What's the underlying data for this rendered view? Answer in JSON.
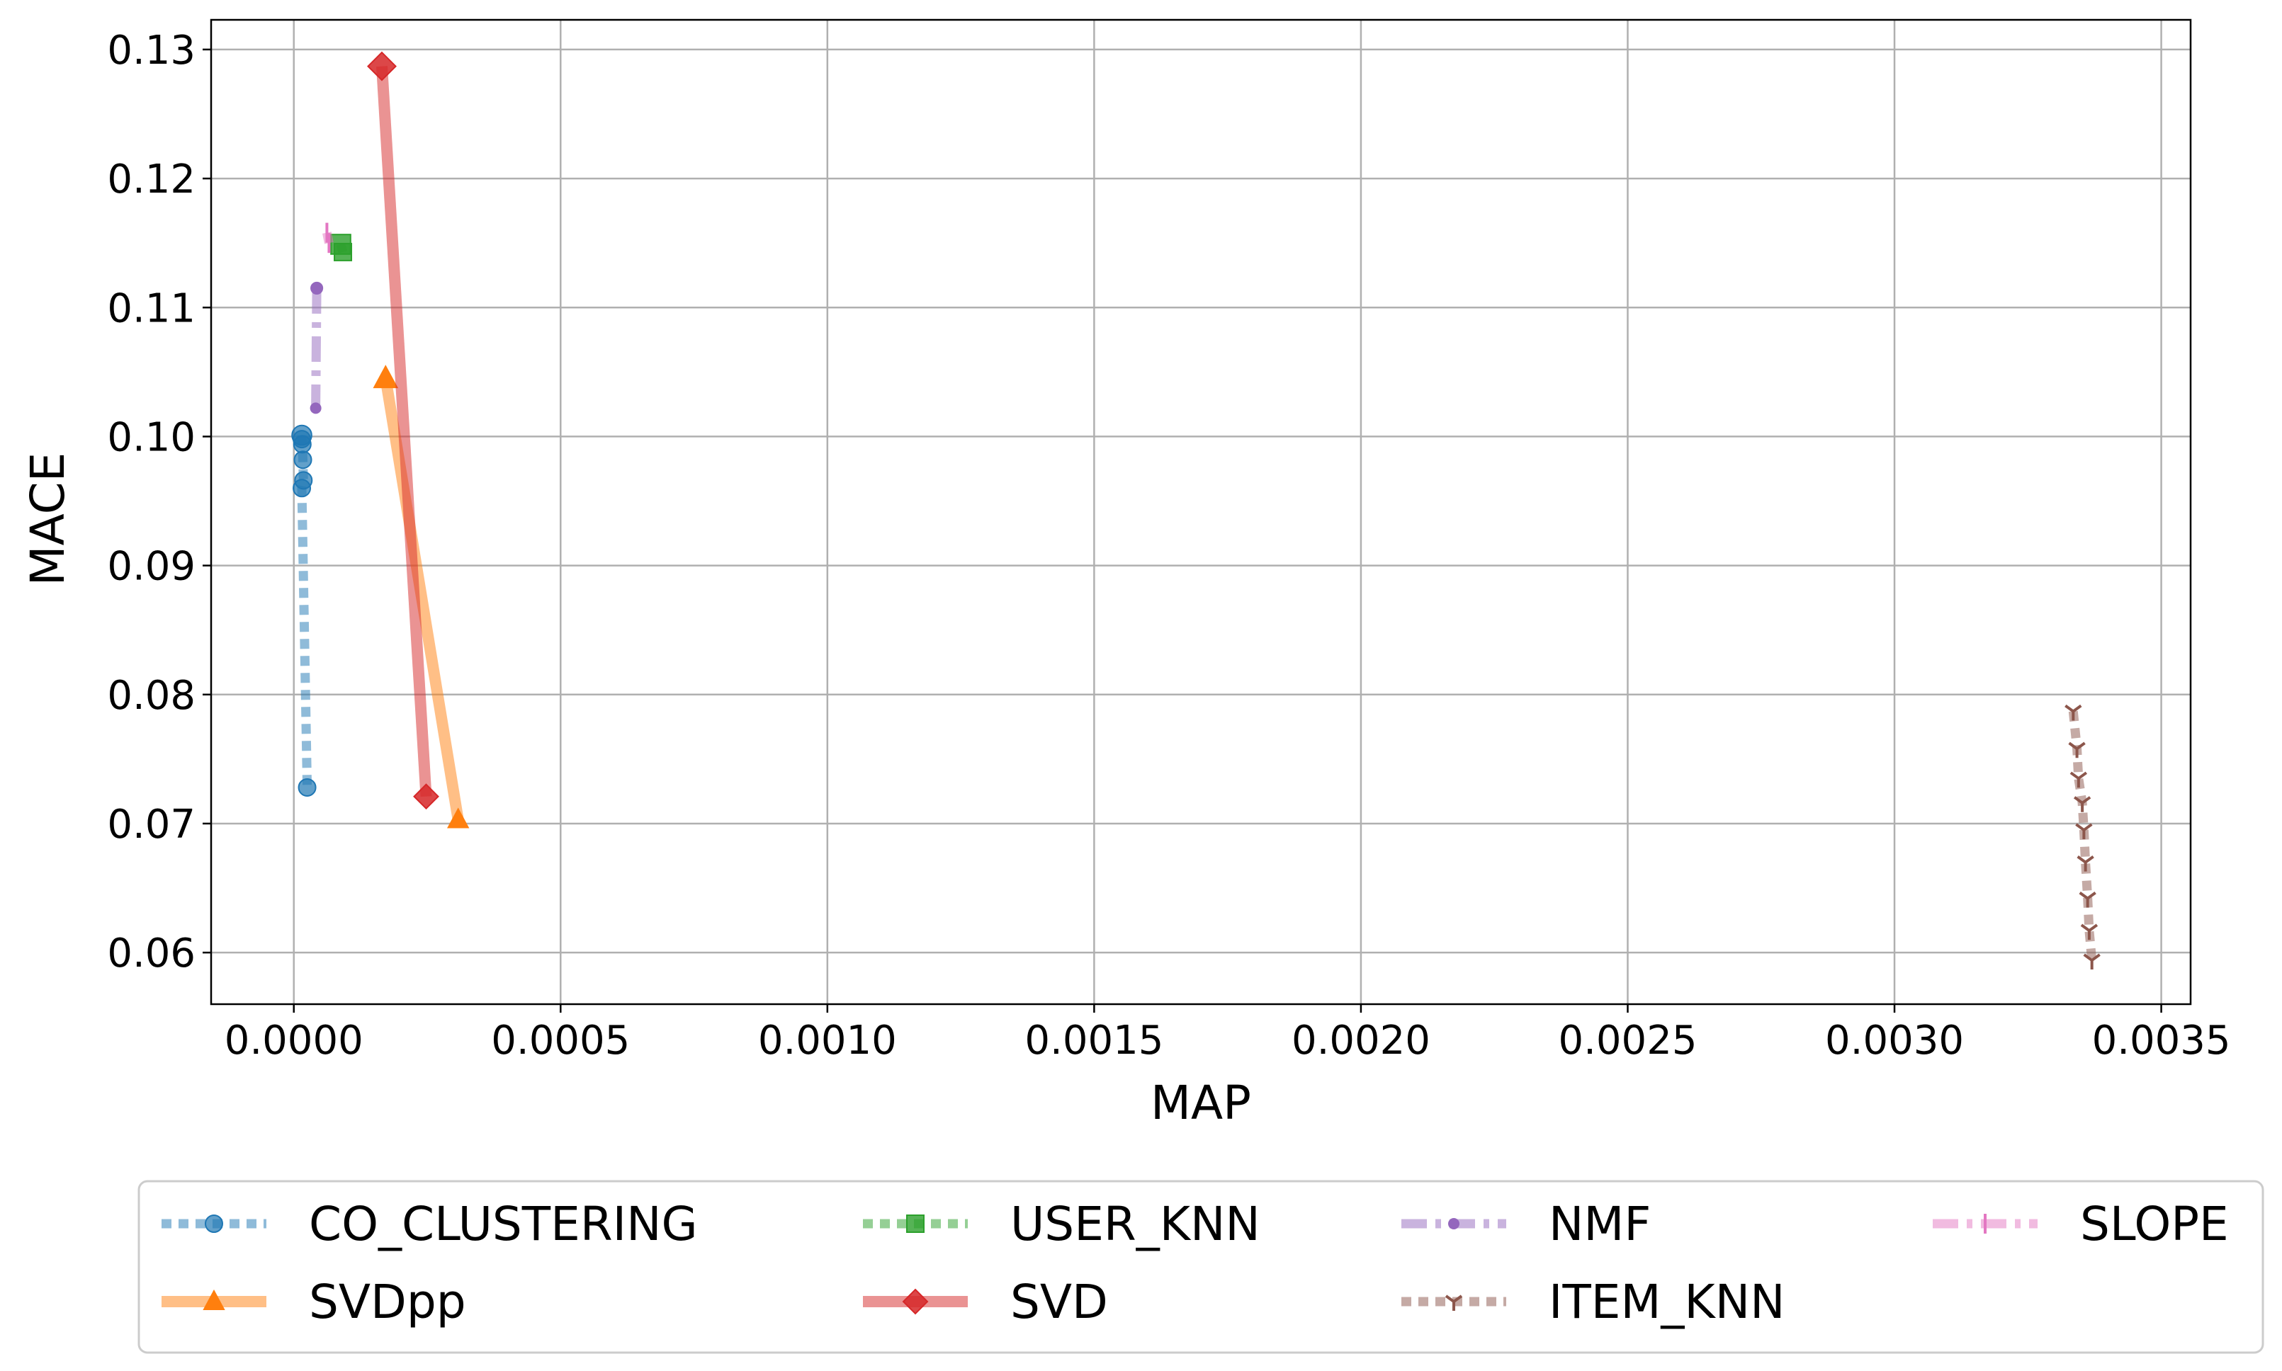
{
  "chart_data": {
    "type": "line",
    "xlabel": "MAP",
    "ylabel": "MACE",
    "xlim": [
      -0.000155,
      0.003555
    ],
    "ylim": [
      0.056,
      0.1323
    ],
    "xticks": [
      0.0,
      0.0005,
      0.001,
      0.0015,
      0.002,
      0.0025,
      0.003,
      0.0035
    ],
    "xtick_labels": [
      "0.0000",
      "0.0005",
      "0.0010",
      "0.0015",
      "0.0020",
      "0.0025",
      "0.0030",
      "0.0035"
    ],
    "yticks": [
      0.06,
      0.07,
      0.08,
      0.09,
      0.1,
      0.11,
      0.12,
      0.13
    ],
    "ytick_labels": [
      "0.06",
      "0.07",
      "0.08",
      "0.09",
      "0.10",
      "0.11",
      "0.12",
      "0.13"
    ],
    "grid": true,
    "legend_position": "below-plot",
    "series": [
      {
        "name": "CO_CLUSTERING",
        "color": "#1f77b4",
        "marker": "circle",
        "dash": "dotted",
        "x": [
          1.5e-05,
          1.5e-05,
          1.6e-05,
          1.7e-05,
          1.8e-05,
          1.5e-05,
          2.5e-05
        ],
        "y": [
          0.1001,
          0.0998,
          0.0994,
          0.0982,
          0.0966,
          0.096,
          0.0728
        ]
      },
      {
        "name": "SVDpp",
        "color": "#ff7f0e",
        "marker": "triangle",
        "dash": "solid",
        "x": [
          0.000172,
          0.000308
        ],
        "y": [
          0.1045,
          0.0703
        ]
      },
      {
        "name": "USER_KNN",
        "color": "#2ca02c",
        "marker": "square",
        "dash": "dotted",
        "x": [
          8.8e-05,
          9.2e-05
        ],
        "y": [
          0.1149,
          0.1143
        ]
      },
      {
        "name": "SVD",
        "color": "#d62728",
        "marker": "diamond",
        "dash": "solid",
        "x": [
          0.000165,
          0.000248
        ],
        "y": [
          0.1287,
          0.0721
        ]
      },
      {
        "name": "NMF",
        "color": "#9467bd",
        "marker": "point",
        "dash": "dashdot",
        "x": [
          4.3e-05,
          4.1e-05
        ],
        "y": [
          0.1115,
          0.1022
        ]
      },
      {
        "name": "ITEM_KNN",
        "color": "#8c564b",
        "marker": "tri_down",
        "dash": "dotted",
        "x": [
          0.003335,
          0.003342,
          0.003345,
          0.003352,
          0.003355,
          0.003358,
          0.003362,
          0.003365,
          0.00337
        ],
        "y": [
          0.0787,
          0.0758,
          0.0735,
          0.0716,
          0.0695,
          0.067,
          0.0642,
          0.0617,
          0.0594
        ]
      },
      {
        "name": "SLOPE",
        "color": "#e377c2",
        "marker": "vline",
        "dash": "dashdot",
        "x": [
          6.2e-05,
          6.6e-05
        ],
        "y": [
          0.1158,
          0.115
        ]
      }
    ]
  }
}
